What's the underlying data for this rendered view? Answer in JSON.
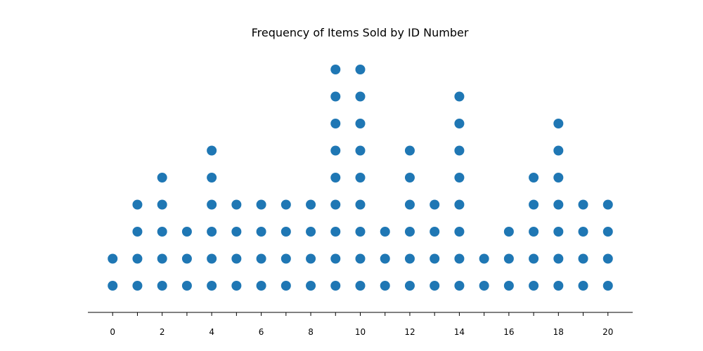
{
  "chart_data": {
    "type": "scatter",
    "subtype": "dot plot",
    "title": "Frequency of Items Sold by ID Number",
    "xlabel": "",
    "ylabel": "",
    "x": [
      0,
      1,
      2,
      3,
      4,
      5,
      6,
      7,
      8,
      9,
      10,
      11,
      12,
      13,
      14,
      15,
      16,
      17,
      18,
      19,
      20
    ],
    "counts": [
      2,
      4,
      5,
      3,
      6,
      4,
      4,
      4,
      4,
      9,
      9,
      3,
      6,
      4,
      8,
      2,
      3,
      5,
      7,
      4,
      4
    ],
    "x_ticks": [
      0,
      2,
      4,
      6,
      8,
      10,
      12,
      14,
      16,
      18,
      20
    ],
    "x_tick_marks_every": 1,
    "xlim": [
      -1,
      21
    ],
    "y_axis_visible": false,
    "grid": false,
    "legend": "none",
    "colors": {
      "dot": "#1f77b4",
      "axis": "#000000",
      "background": "#ffffff"
    }
  }
}
